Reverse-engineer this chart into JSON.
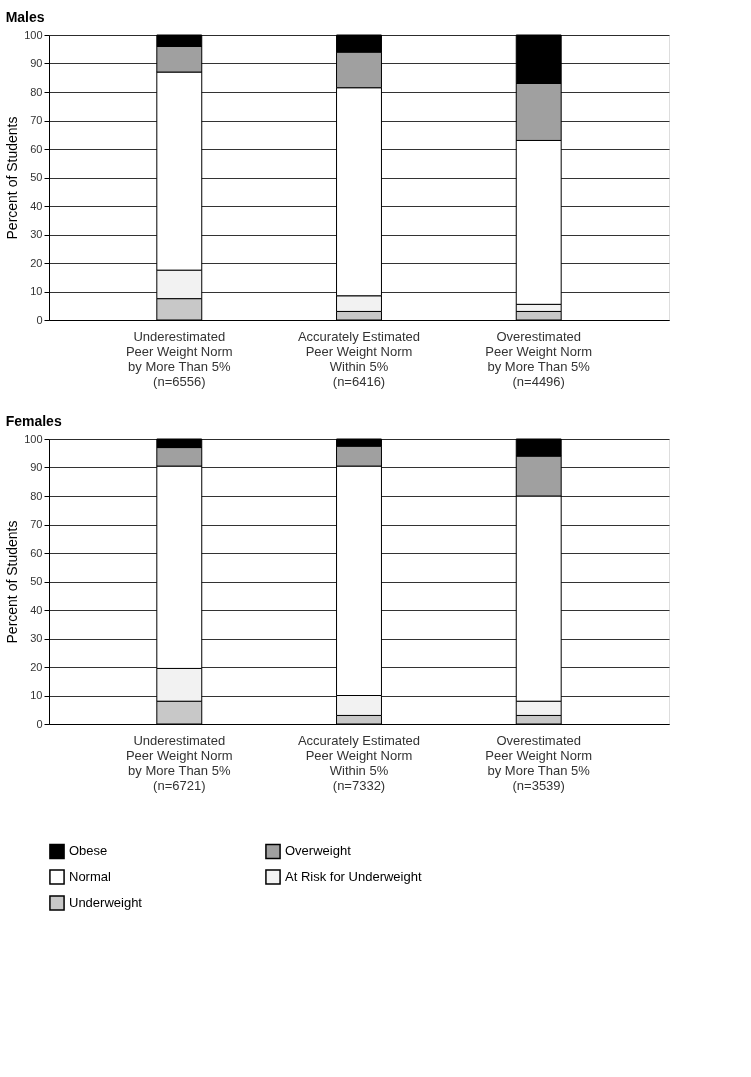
{
  "chart_data": [
    {
      "type": "bar",
      "title": "Males",
      "ylabel": "Percent of Students",
      "stacked": true,
      "grid": "y",
      "legend": "bottom",
      "categories": [
        "Underestimated\nPeer Weight Norm\nby More Than 5%\n(n=6556)",
        "Accurately Estimated\nPeer Weight Norm\nWithin 5%\n(n=6416)",
        "Overestimated\nPeer Weight Norm\nby More Than 5%\n(n=4496)"
      ],
      "ylim": [
        0,
        100
      ],
      "yticks": [
        0,
        10,
        20,
        30,
        40,
        50,
        60,
        70,
        80,
        90,
        100
      ],
      "series": [
        {
          "name": "Underweight",
          "color": "#c8c8c8",
          "values": [
            7.5,
            3,
            3
          ]
        },
        {
          "name": "At Risk for Underweight",
          "color": "#f2f2f2",
          "values": [
            10,
            5.5,
            2.5
          ]
        },
        {
          "name": "Normal",
          "color": "#ffffff",
          "values": [
            69.5,
            73,
            57.5
          ]
        },
        {
          "name": "Overweight",
          "color": "#a0a0a0",
          "values": [
            9,
            12.5,
            20
          ]
        },
        {
          "name": "Obese",
          "color": "#000000",
          "values": [
            4,
            6,
            17
          ]
        }
      ]
    },
    {
      "type": "bar",
      "title": "Females",
      "ylabel": "Percent of Students",
      "stacked": true,
      "grid": "y",
      "legend": "bottom",
      "categories": [
        "Underestimated\nPeer Weight Norm\nby More Than 5%\n(n=6721)",
        "Accurately Estimated\nPeer Weight Norm\nWithin 5%\n(n=7332)",
        "Overestimated\nPeer Weight Norm\nby More Than 5%\n(n=3539)"
      ],
      "ylim": [
        0,
        100
      ],
      "yticks": [
        0,
        10,
        20,
        30,
        40,
        50,
        60,
        70,
        80,
        90,
        100
      ],
      "series": [
        {
          "name": "Underweight",
          "color": "#c8c8c8",
          "values": [
            8,
            3,
            3
          ]
        },
        {
          "name": "At Risk for Underweight",
          "color": "#f2f2f2",
          "values": [
            11.5,
            7,
            5
          ]
        },
        {
          "name": "Normal",
          "color": "#ffffff",
          "values": [
            71,
            80.5,
            72
          ]
        },
        {
          "name": "Overweight",
          "color": "#a0a0a0",
          "values": [
            6.5,
            7,
            14
          ]
        },
        {
          "name": "Obese",
          "color": "#000000",
          "values": [
            3,
            2.5,
            6
          ]
        }
      ]
    }
  ]
}
